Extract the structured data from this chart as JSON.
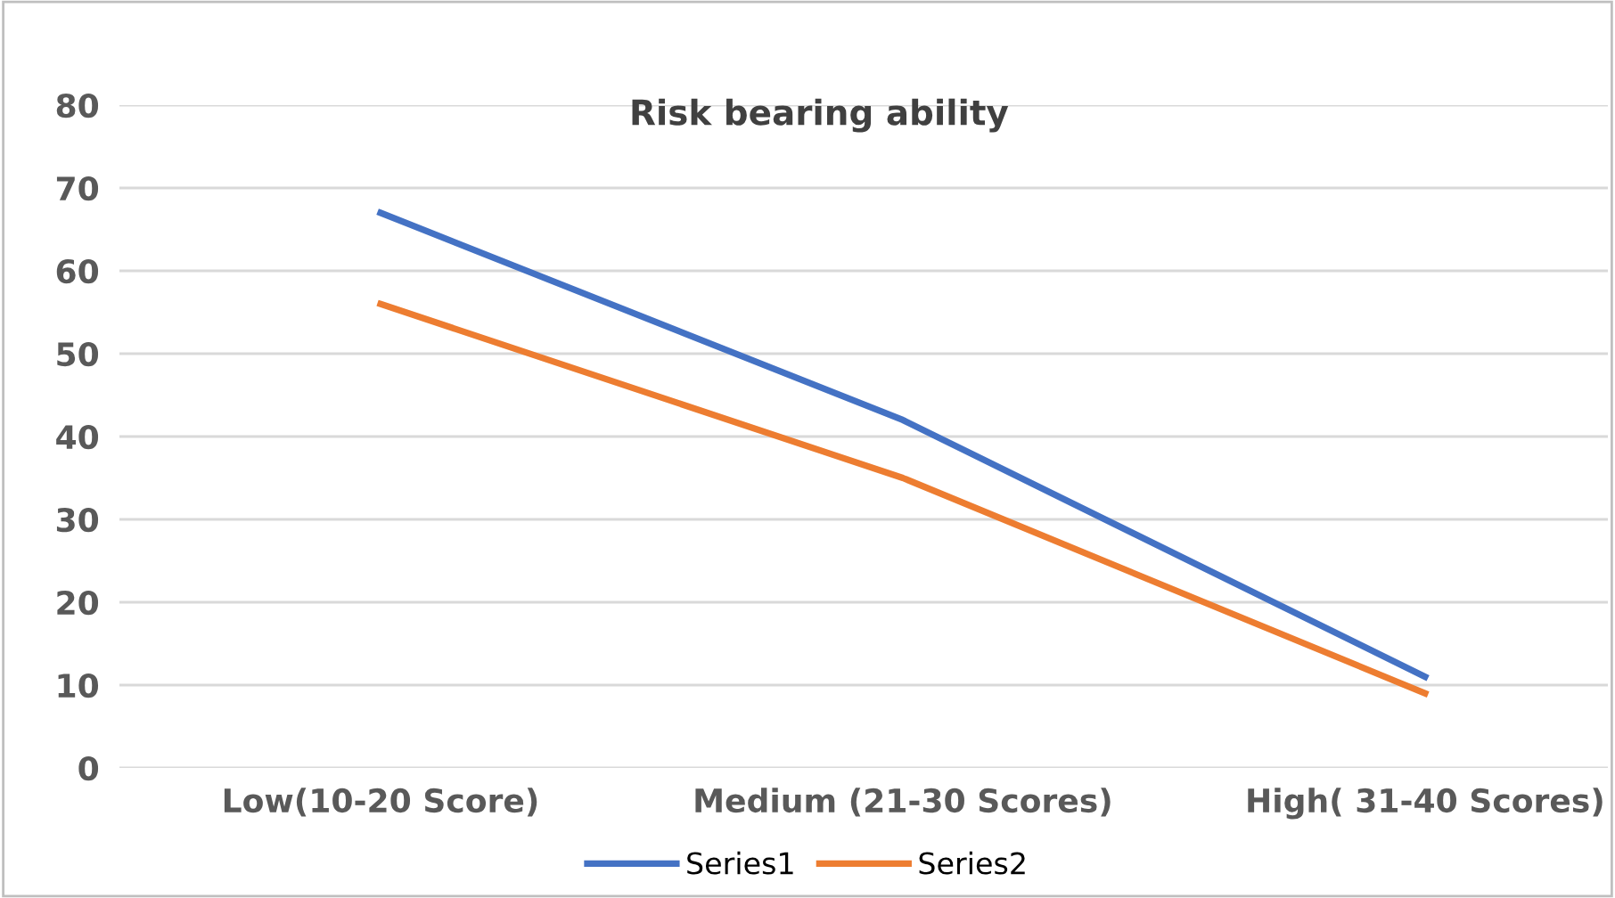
{
  "chart_data": {
    "type": "line",
    "title": "Risk bearing ability",
    "categories": [
      "Low(10-20 Score)",
      "Medium (21-30 Scores)",
      "High( 31-40 Scores)"
    ],
    "series": [
      {
        "name": "Series1",
        "color": "#4472c4",
        "values": [
          67,
          42,
          11
        ]
      },
      {
        "name": "Series2",
        "color": "#ed7d31",
        "values": [
          56,
          35,
          9
        ]
      }
    ],
    "ylim": [
      0,
      80
    ],
    "yticks": [
      0,
      10,
      20,
      30,
      40,
      50,
      60,
      70,
      80
    ],
    "grid": "y",
    "legend": "bottom",
    "marker": "none",
    "line_style": "solid"
  }
}
